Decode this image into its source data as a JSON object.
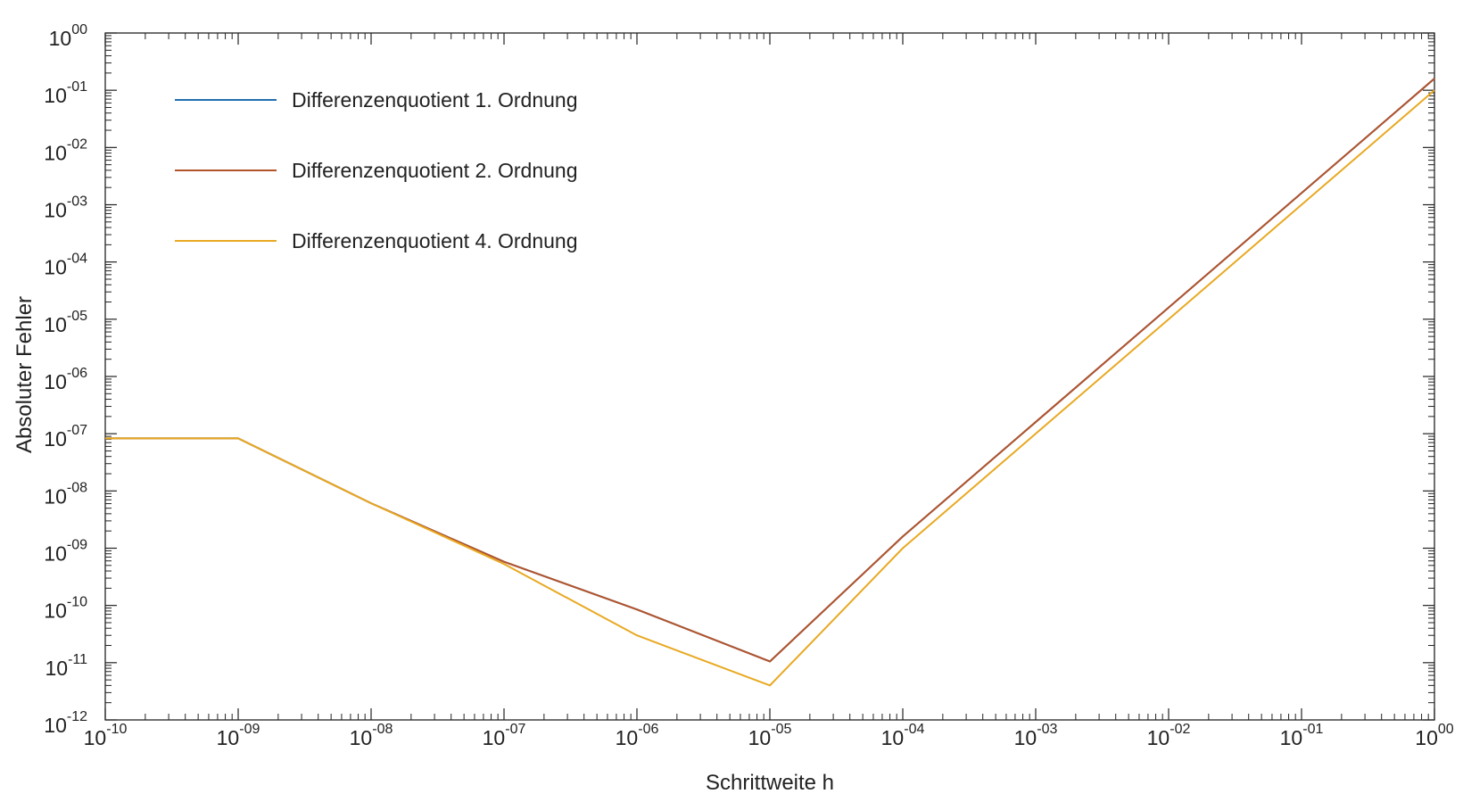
{
  "chart_data": {
    "type": "line",
    "xlabel": "Schrittweite h",
    "ylabel": "Absoluter Fehler",
    "xscale": "log",
    "yscale": "log",
    "xlim": [
      1e-10,
      1
    ],
    "ylim": [
      1e-12,
      1
    ],
    "grid": false,
    "legend_position": "top-left",
    "x_ticks": [
      {
        "base": "10",
        "exp": "-10"
      },
      {
        "base": "10",
        "exp": "-09"
      },
      {
        "base": "10",
        "exp": "-08"
      },
      {
        "base": "10",
        "exp": "-07"
      },
      {
        "base": "10",
        "exp": "-06"
      },
      {
        "base": "10",
        "exp": "-05"
      },
      {
        "base": "10",
        "exp": "-04"
      },
      {
        "base": "10",
        "exp": "-03"
      },
      {
        "base": "10",
        "exp": "-02"
      },
      {
        "base": "10",
        "exp": "-01"
      },
      {
        "base": "10",
        "exp": "00"
      }
    ],
    "y_ticks": [
      {
        "base": "10",
        "exp": "-12"
      },
      {
        "base": "10",
        "exp": "-11"
      },
      {
        "base": "10",
        "exp": "-10"
      },
      {
        "base": "10",
        "exp": "-09"
      },
      {
        "base": "10",
        "exp": "-08"
      },
      {
        "base": "10",
        "exp": "-07"
      },
      {
        "base": "10",
        "exp": "-06"
      },
      {
        "base": "10",
        "exp": "-05"
      },
      {
        "base": "10",
        "exp": "-04"
      },
      {
        "base": "10",
        "exp": "-03"
      },
      {
        "base": "10",
        "exp": "-02"
      },
      {
        "base": "10",
        "exp": "-01"
      },
      {
        "base": "10",
        "exp": "00"
      }
    ],
    "x": [
      1e-10,
      1e-09,
      1e-08,
      1e-07,
      1e-06,
      1e-05,
      0.0001,
      0.001,
      0.01,
      0.1,
      1
    ],
    "series": [
      {
        "name": "Differenzenquotient 1. Ordnung",
        "color": "#1f6fb0",
        "values": [
          8.3e-08,
          8.3e-08,
          6.1e-09,
          5.8e-10,
          8.5e-11,
          1.05e-11,
          1.6e-09,
          1.6e-07,
          1.6e-05,
          0.0016,
          0.16
        ]
      },
      {
        "name": "Differenzenquotient 2. Ordnung",
        "color": "#b5532a",
        "values": [
          8.3e-08,
          8.3e-08,
          6.1e-09,
          5.8e-10,
          8.5e-11,
          1.05e-11,
          1.6e-09,
          1.6e-07,
          1.6e-05,
          0.0016,
          0.16
        ]
      },
      {
        "name": "Differenzenquotient 4. Ordnung",
        "color": "#e8a922",
        "values": [
          8.3e-08,
          8.3e-08,
          6.1e-09,
          5.3e-10,
          3e-11,
          4e-12,
          1e-09,
          1e-07,
          1e-05,
          0.001,
          0.1
        ]
      }
    ]
  }
}
